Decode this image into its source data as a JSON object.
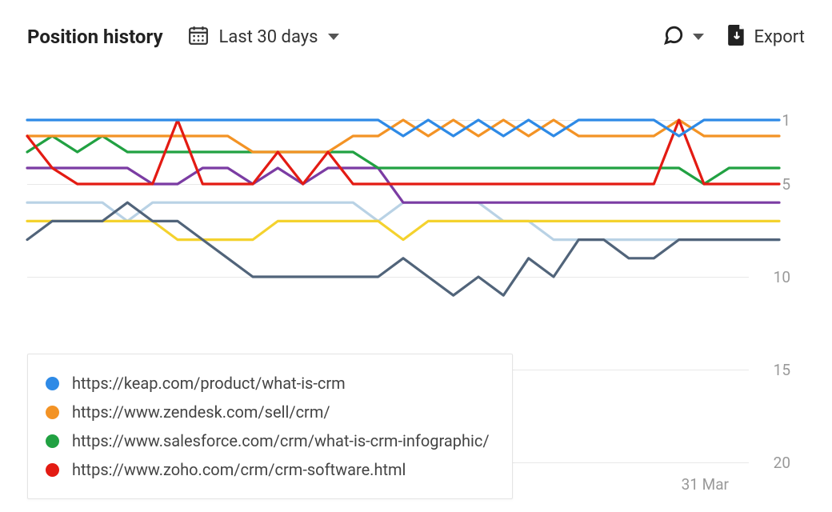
{
  "header": {
    "title": "Position history",
    "range_label": "Last 30 days",
    "export_label": "Export"
  },
  "chart": {
    "type": "line",
    "y_inverted": true,
    "grid_color": "#e8e8e8",
    "background": "#ffffff",
    "line_width": 3.2,
    "x_label": "31 Mar",
    "y_ticks": [
      1,
      5,
      10,
      15,
      20
    ],
    "y_label_color": "#999999",
    "n_points": 31,
    "plot_extent": {
      "ymin": 0,
      "ymax": 12
    },
    "series": [
      {
        "name": "lightblue",
        "color": "#b9d2e5",
        "values": [
          6,
          6,
          6,
          6,
          7,
          6,
          6,
          6,
          6,
          6,
          6,
          6,
          6,
          6,
          7,
          6,
          6,
          6,
          6,
          7,
          7,
          8,
          8,
          8,
          8,
          8,
          8,
          8,
          8,
          8,
          8
        ]
      },
      {
        "name": "yellow",
        "color": "#f4d22e",
        "values": [
          7,
          7,
          7,
          7,
          7,
          7,
          8,
          8,
          8,
          8,
          7,
          7,
          7,
          7,
          7,
          8,
          7,
          7,
          7,
          7,
          7,
          7,
          7,
          7,
          7,
          7,
          7,
          7,
          7,
          7,
          7
        ]
      },
      {
        "name": "slate",
        "color": "#51647a",
        "values": [
          8,
          7,
          7,
          7,
          6,
          7,
          7,
          8,
          9,
          10,
          10,
          10,
          10,
          10,
          10,
          9,
          10,
          11,
          10,
          11,
          9,
          10,
          8,
          8,
          9,
          9,
          8,
          8,
          8,
          8,
          8
        ]
      },
      {
        "name": "purple",
        "color": "#7b3ca3",
        "values": [
          4,
          4,
          4,
          4,
          4,
          5,
          5,
          4,
          4,
          5,
          4,
          5,
          4,
          4,
          4,
          6,
          6,
          6,
          6,
          6,
          6,
          6,
          6,
          6,
          6,
          6,
          6,
          6,
          6,
          6,
          6
        ]
      },
      {
        "name": "green",
        "color": "#21a142",
        "values": [
          3,
          2,
          3,
          2,
          3,
          3,
          3,
          3,
          3,
          3,
          3,
          3,
          3,
          3,
          4,
          4,
          4,
          4,
          4,
          4,
          4,
          4,
          4,
          4,
          4,
          4,
          4,
          5,
          4,
          4,
          4
        ]
      },
      {
        "name": "orange",
        "color": "#f39325",
        "values": [
          2,
          2,
          2,
          2,
          2,
          2,
          2,
          2,
          2,
          3,
          3,
          3,
          3,
          2,
          2,
          1,
          2,
          1,
          2,
          1,
          2,
          1,
          2,
          2,
          2,
          2,
          1,
          2,
          2,
          2,
          2
        ]
      },
      {
        "name": "red",
        "color": "#e31b13",
        "values": [
          2,
          4,
          5,
          5,
          5,
          5,
          1,
          5,
          5,
          5,
          3,
          5,
          3,
          5,
          5,
          5,
          5,
          5,
          5,
          5,
          5,
          5,
          5,
          5,
          5,
          5,
          1,
          5,
          5,
          5,
          5
        ]
      },
      {
        "name": "blue",
        "color": "#2e8ae6",
        "values": [
          1,
          1,
          1,
          1,
          1,
          1,
          1,
          1,
          1,
          1,
          1,
          1,
          1,
          1,
          1,
          2,
          1,
          2,
          1,
          2,
          1,
          2,
          1,
          1,
          1,
          1,
          2,
          1,
          1,
          1,
          1
        ]
      }
    ]
  },
  "legend": {
    "items": [
      {
        "color": "#2e8ae6",
        "label": "https://keap.com/product/what-is-crm"
      },
      {
        "color": "#f39325",
        "label": "https://www.zendesk.com/sell/crm/"
      },
      {
        "color": "#21a142",
        "label": "https://www.salesforce.com/crm/what-is-crm-infographic/"
      },
      {
        "color": "#e31b13",
        "label": "https://www.zoho.com/crm/crm-software.html"
      }
    ]
  }
}
